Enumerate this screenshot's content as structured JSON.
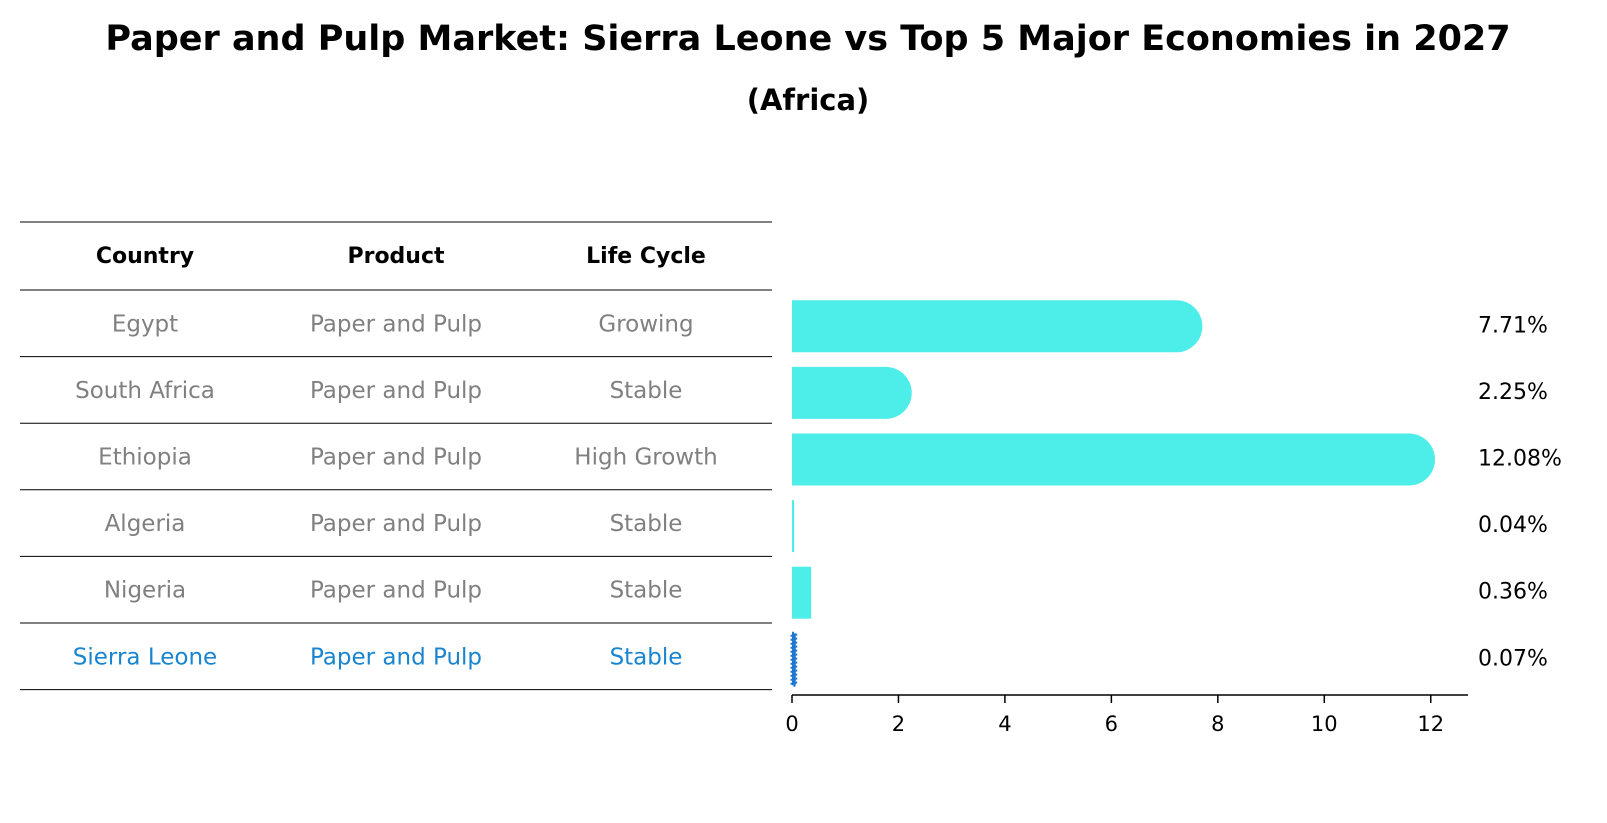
{
  "chart_data": {
    "type": "bar",
    "orientation": "horizontal",
    "title": "Paper and Pulp Market: Sierra Leone vs Top 5 Major Economies in 2027",
    "subtitle": "(Africa)",
    "table": {
      "headers": [
        "Country",
        "Product",
        "Life Cycle"
      ],
      "rows": [
        [
          "Egypt",
          "Paper and Pulp",
          "Growing"
        ],
        [
          "South Africa",
          "Paper and Pulp",
          "Stable"
        ],
        [
          "Ethiopia",
          "Paper and Pulp",
          "High Growth"
        ],
        [
          "Algeria",
          "Paper and Pulp",
          "Stable"
        ],
        [
          "Nigeria",
          "Paper and Pulp",
          "Stable"
        ],
        [
          "Sierra Leone",
          "Paper and Pulp",
          "Stable"
        ]
      ],
      "highlight_row": 5
    },
    "categories": [
      "Egypt",
      "South Africa",
      "Ethiopia",
      "Algeria",
      "Nigeria",
      "Sierra Leone"
    ],
    "values": [
      7.71,
      2.25,
      12.08,
      0.04,
      0.36,
      0.07
    ],
    "value_labels": [
      "7.71%",
      "2.25%",
      "12.08%",
      "0.04%",
      "0.36%",
      "0.07%"
    ],
    "xticks": [
      0,
      2,
      4,
      6,
      8,
      10,
      12
    ],
    "xlim": [
      0,
      12.7
    ],
    "grid": false,
    "colors": {
      "bar": "#4deeea",
      "highlight_bar": "#1f77d0",
      "text": "#808080",
      "highlight_text": "#1a85cf"
    }
  }
}
